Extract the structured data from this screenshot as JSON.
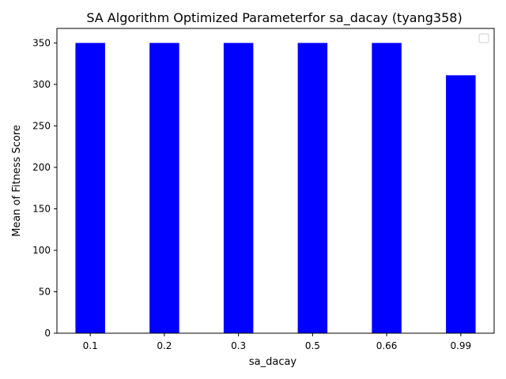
{
  "chart_data": {
    "type": "bar",
    "title": "SA Algorithm Optimized Parameterfor sa_dacay (tyang358)",
    "xlabel": "sa_dacay",
    "ylabel": "Mean of Fitness Score",
    "categories": [
      "0.1",
      "0.2",
      "0.3",
      "0.5",
      "0.66",
      "0.99"
    ],
    "values": [
      350,
      350,
      350,
      350,
      350,
      311
    ],
    "ylim": [
      0,
      367.5
    ],
    "yticks": [
      0,
      50,
      100,
      150,
      200,
      250,
      300,
      350
    ],
    "bar_color": "#0000ff",
    "grid": false,
    "legend": {
      "placement": "top-right",
      "entries": []
    }
  }
}
